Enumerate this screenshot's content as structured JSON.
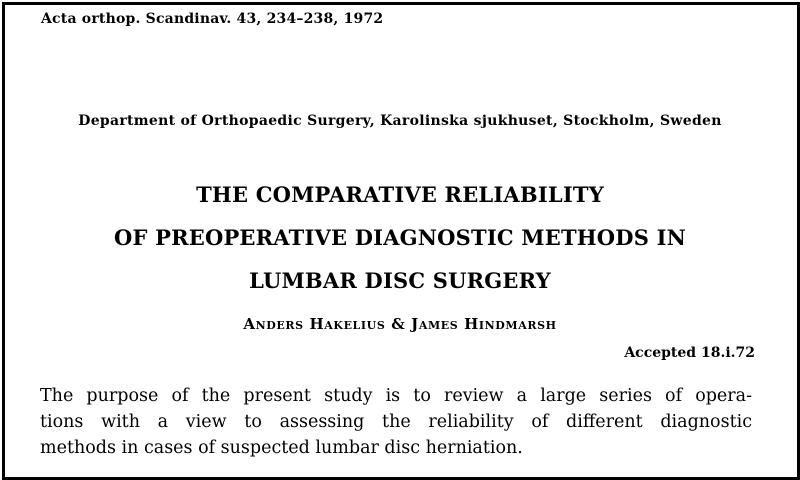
{
  "citation": "Acta orthop. Scandinav. 43, 234–238, 1972",
  "affiliation": "Department of Orthopaedic Surgery, Karolinska sjukhuset, Stockholm, Sweden",
  "title_lines": [
    "THE COMPARATIVE RELIABILITY",
    "OF PREOPERATIVE DIAGNOSTIC METHODS IN",
    "LUMBAR DISC SURGERY"
  ],
  "authors": "Anders Hakelius & James Hindmarsh",
  "accepted": "Accepted 18.i.72",
  "abstract_lines": [
    "The purpose of the present study is to review a large series of opera-",
    "tions with a view to assessing the reliability of different diagnostic",
    "methods in cases of suspected lumbar disc herniation."
  ]
}
